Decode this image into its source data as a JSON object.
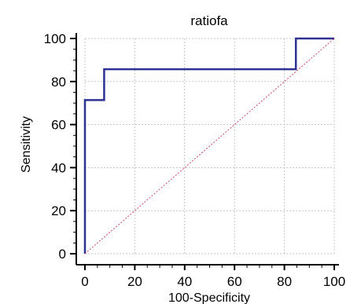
{
  "chart_data": {
    "type": "line",
    "title": "ratiofa",
    "xlabel": "100-Specificity",
    "ylabel": "Sensitivity",
    "xlim": [
      0,
      100
    ],
    "ylim": [
      0,
      100
    ],
    "xticks": [
      "0",
      "20",
      "40",
      "60",
      "80",
      "100"
    ],
    "yticks": [
      "0",
      "20",
      "40",
      "60",
      "80",
      "100"
    ],
    "grid": true,
    "series": [
      {
        "color": "#2e3192",
        "x": [
          0,
          0,
          7.7,
          7.7,
          84.6,
          84.6,
          100
        ],
        "y": [
          0,
          71.4,
          71.4,
          85.7,
          85.7,
          100,
          100
        ]
      },
      {
        "color": "#c0506a",
        "style": "dashed",
        "x": [
          0,
          100
        ],
        "y": [
          0,
          100
        ]
      }
    ]
  }
}
